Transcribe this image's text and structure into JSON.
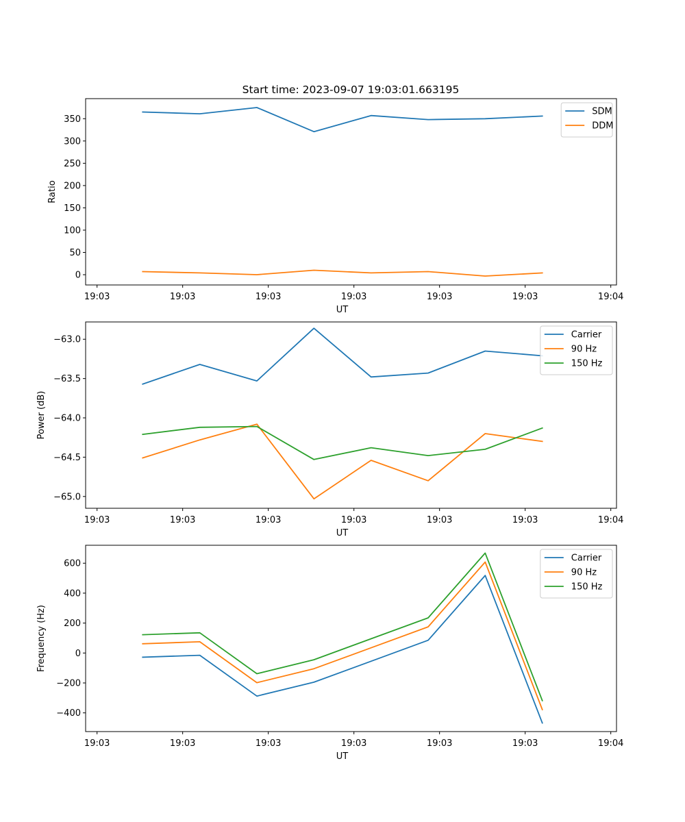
{
  "figure": {
    "title": "Start time: 2023-09-07 19:03:01.663195",
    "colors": {
      "blue": "#1f77b4",
      "orange": "#ff7f0e",
      "green": "#2ca02c"
    }
  },
  "chart_data": [
    {
      "type": "line",
      "title": "Start time: 2023-09-07 19:03:01.663195",
      "xlabel": "UT",
      "ylabel": "Ratio",
      "x": [
        1,
        2,
        3,
        4,
        5,
        6,
        7,
        8
      ],
      "xlim": [
        0,
        9.3
      ],
      "xticks": [
        0.2,
        1.7,
        3.2,
        4.7,
        6.2,
        7.7,
        9.2
      ],
      "xticklabels": [
        "19:03",
        "19:03",
        "19:03",
        "19:03",
        "19:03",
        "19:03",
        "19:04"
      ],
      "ylim": [
        -23,
        395
      ],
      "yticks": [
        0,
        50,
        100,
        150,
        200,
        250,
        300,
        350
      ],
      "legend": "top-right",
      "series": [
        {
          "name": "SDM",
          "color": "#1f77b4",
          "values": [
            365,
            361,
            375,
            321,
            357,
            348,
            350,
            356
          ]
        },
        {
          "name": "DDM",
          "color": "#ff7f0e",
          "values": [
            7,
            4,
            0,
            10,
            4,
            7,
            -3,
            4
          ]
        }
      ]
    },
    {
      "type": "line",
      "xlabel": "UT",
      "ylabel": "Power (dB)",
      "x": [
        1,
        2,
        3,
        4,
        5,
        6,
        7,
        8
      ],
      "xlim": [
        0,
        9.3
      ],
      "xticks": [
        0.2,
        1.7,
        3.2,
        4.7,
        6.2,
        7.7,
        9.2
      ],
      "xticklabels": [
        "19:03",
        "19:03",
        "19:03",
        "19:03",
        "19:03",
        "19:03",
        "19:04"
      ],
      "ylim": [
        -65.15,
        -62.78
      ],
      "yticks": [
        -65.0,
        -64.5,
        -64.0,
        -63.5,
        -63.0
      ],
      "yticklabels": [
        "−65.0",
        "−64.5",
        "−64.0",
        "−63.5",
        "−63.0"
      ],
      "legend": "top-right",
      "series": [
        {
          "name": "Carrier",
          "color": "#1f77b4",
          "values": [
            -63.57,
            -63.32,
            -63.53,
            -62.86,
            -63.48,
            -63.43,
            -63.15,
            -63.21
          ]
        },
        {
          "name": "90 Hz",
          "color": "#ff7f0e",
          "values": [
            -64.51,
            -64.28,
            -64.08,
            -65.03,
            -64.54,
            -64.8,
            -64.2,
            -64.3
          ]
        },
        {
          "name": "150 Hz",
          "color": "#2ca02c",
          "values": [
            -64.21,
            -64.12,
            -64.11,
            -64.53,
            -64.38,
            -64.48,
            -64.4,
            -64.13
          ]
        }
      ]
    },
    {
      "type": "line",
      "xlabel": "UT",
      "ylabel": "Frequency (Hz)",
      "x": [
        1,
        2,
        3,
        4,
        5,
        6,
        7,
        8
      ],
      "xlim": [
        0,
        9.3
      ],
      "xticks": [
        0.2,
        1.7,
        3.2,
        4.7,
        6.2,
        7.7,
        9.2
      ],
      "xticklabels": [
        "19:03",
        "19:03",
        "19:03",
        "19:03",
        "19:03",
        "19:03",
        "19:04"
      ],
      "ylim": [
        -525,
        720
      ],
      "yticks": [
        -400,
        -200,
        0,
        200,
        400,
        600
      ],
      "yticklabels": [
        "−400",
        "−200",
        "0",
        "200",
        "400",
        "600"
      ],
      "legend": "top-right",
      "series": [
        {
          "name": "Carrier",
          "color": "#1f77b4",
          "values": [
            -28,
            -15,
            -288,
            -195,
            -55,
            85,
            518,
            -468
          ]
        },
        {
          "name": "90 Hz",
          "color": "#ff7f0e",
          "values": [
            62,
            75,
            -198,
            -105,
            35,
            175,
            608,
            -378
          ]
        },
        {
          "name": "150 Hz",
          "color": "#2ca02c",
          "values": [
            122,
            135,
            -138,
            -45,
            95,
            235,
            668,
            -318
          ]
        }
      ]
    }
  ]
}
